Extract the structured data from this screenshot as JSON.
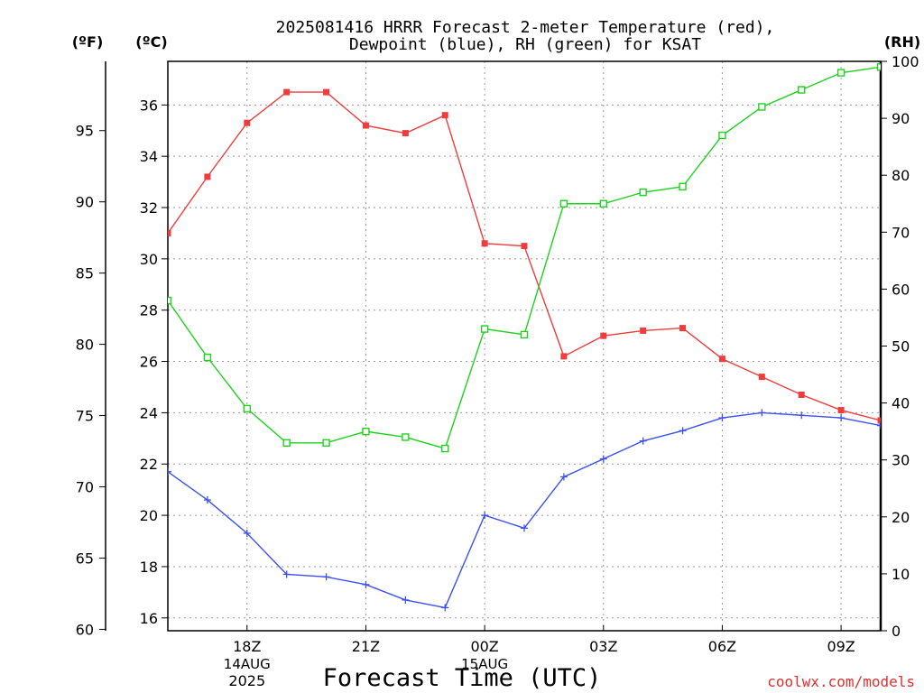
{
  "chart_data": {
    "type": "line",
    "title_line1": "2025081416 HRRR Forecast 2-meter Temperature (red),",
    "title_line2": "Dewpoint (blue), RH (green) for KSAT",
    "xlabel": "Forecast Time (UTC)",
    "unit_f": "(ºF)",
    "unit_c": "(ºC)",
    "unit_rh": "(RH)",
    "watermark": "coolwx.com/models",
    "x": [
      15,
      16,
      17,
      18,
      19,
      20,
      21,
      22,
      23,
      24,
      25,
      26,
      27,
      28,
      29,
      30,
      31,
      32,
      33,
      34
    ],
    "xlim": [
      15,
      33
    ],
    "x_ticks": [
      {
        "x": 17,
        "label": "18Z",
        "sub1": "14AUG",
        "sub2": "2025"
      },
      {
        "x": 20,
        "label": "21Z",
        "sub1": "",
        "sub2": ""
      },
      {
        "x": 23,
        "label": "00Z",
        "sub1": "15AUG",
        "sub2": ""
      },
      {
        "x": 26,
        "label": "03Z",
        "sub1": "",
        "sub2": ""
      },
      {
        "x": 29,
        "label": "06Z",
        "sub1": "",
        "sub2": ""
      },
      {
        "x": 32,
        "label": "09Z",
        "sub1": "",
        "sub2": ""
      }
    ],
    "x_grid": [
      17,
      20,
      23,
      26,
      29,
      32
    ],
    "c_axis": {
      "ylim": [
        15.5,
        37.7
      ],
      "ticks": [
        16,
        18,
        20,
        22,
        24,
        26,
        28,
        30,
        32,
        34,
        36
      ]
    },
    "f_axis": {
      "ylim": [
        59.9,
        99.86
      ],
      "ticks": [
        60,
        65,
        70,
        75,
        80,
        85,
        90,
        95
      ]
    },
    "rh_axis": {
      "ylim": [
        0,
        100
      ],
      "ticks": [
        0,
        10,
        20,
        30,
        40,
        50,
        60,
        70,
        80,
        90,
        100
      ]
    },
    "grid": true,
    "series": [
      {
        "key": "temp",
        "axis": "c",
        "color": "#f03c3c",
        "marker": "filled-square",
        "values": [
          31.0,
          33.2,
          35.3,
          36.5,
          36.5,
          35.2,
          34.9,
          35.6,
          30.6,
          30.5,
          26.2,
          27.0,
          27.2,
          27.3,
          26.1,
          25.4,
          24.7,
          24.1,
          23.7,
          23.3
        ]
      },
      {
        "key": "dewpoint",
        "axis": "c",
        "color": "#3c50f0",
        "marker": "plus",
        "values": [
          21.7,
          20.6,
          19.3,
          17.7,
          17.6,
          17.3,
          16.7,
          16.4,
          20.0,
          19.5,
          21.5,
          22.2,
          22.9,
          23.3,
          23.8,
          24.0,
          23.9,
          23.8,
          23.5,
          23.2
        ]
      },
      {
        "key": "rh",
        "axis": "rh",
        "color": "#1ed21e",
        "marker": "open-square",
        "values": [
          58,
          48,
          39,
          33,
          33,
          35,
          34,
          32,
          53,
          52,
          75,
          75,
          77,
          78,
          87,
          92,
          95,
          98,
          99,
          100
        ]
      }
    ]
  }
}
